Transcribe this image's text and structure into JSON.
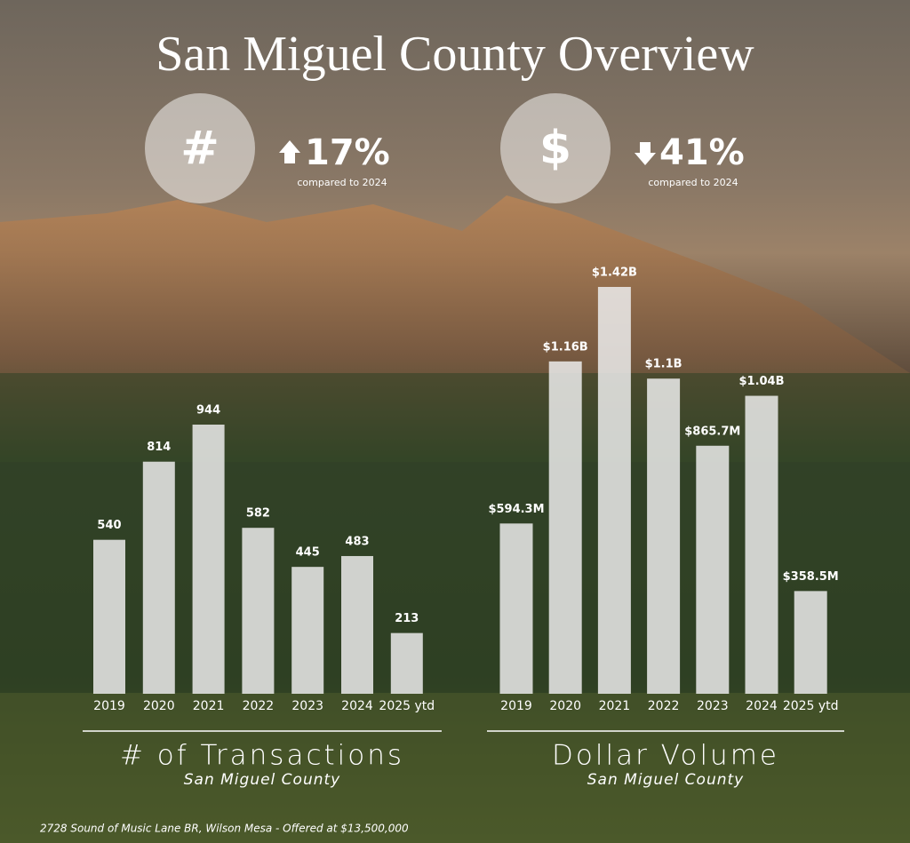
{
  "header": {
    "title": "San Miguel County Overview"
  },
  "stats": [
    {
      "icon": "#",
      "change": "17%",
      "note": "compared to 2024"
    },
    {
      "icon": "$",
      "change": "41%",
      "note": "compared to 2024"
    }
  ],
  "chart_data": [
    {
      "type": "bar",
      "title": "# of Transactions",
      "subtitle": "San Miguel County",
      "categories": [
        "2019",
        "2020",
        "2021",
        "2022",
        "2023",
        "2024",
        "2025 ytd"
      ],
      "values": [
        540,
        814,
        944,
        582,
        445,
        483,
        213
      ],
      "color": "#ececec"
    },
    {
      "type": "bar",
      "title": "Dollar Volume",
      "subtitle": "San Miguel County",
      "categories": [
        "2019",
        "2020",
        "2021",
        "2022",
        "2023",
        "2024",
        "2025 ytd"
      ],
      "values": [
        594300000,
        1160000000,
        1420000000,
        1100000000,
        865700000,
        1040000000,
        358500000
      ],
      "value_labels": [
        "$594.3M",
        "$1.16B",
        "$1.42B",
        "$1.1B",
        "$865.7M",
        "$1.04B",
        "$358.5M"
      ],
      "color": "#ececec"
    }
  ],
  "footer": "2728 Sound of Music Lane BR, Wilson Mesa - Offered at $13,500,000"
}
